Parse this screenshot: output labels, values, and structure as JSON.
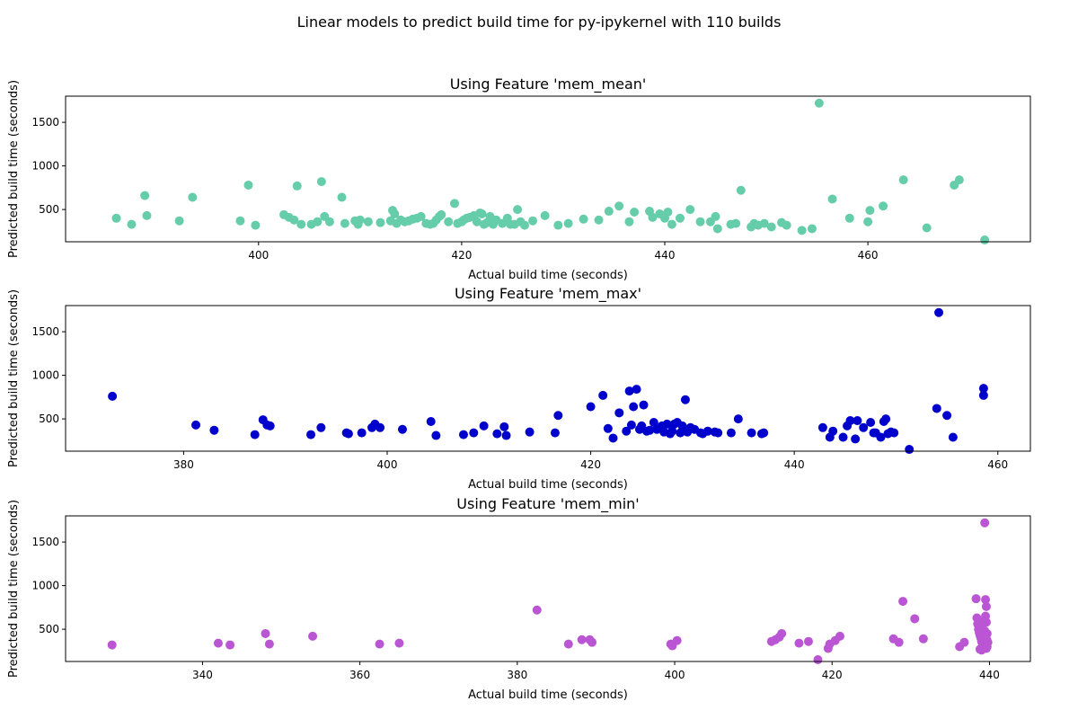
{
  "figure": {
    "suptitle": "Linear models to predict build time for py-ipykernel with 110 builds"
  },
  "chart_data": [
    {
      "type": "scatter",
      "title": "Using Feature 'mem_mean'",
      "xlabel": "Actual build time (seconds)",
      "ylabel": "Predicted build time (seconds)",
      "xlim": [
        381,
        476
      ],
      "ylim": [
        130,
        1800
      ],
      "xticks": [
        400,
        420,
        440,
        460
      ],
      "yticks": [
        500,
        1000,
        1500
      ],
      "color": "#66cdaa",
      "points": [
        [
          386,
          400
        ],
        [
          387.5,
          330
        ],
        [
          388.8,
          660
        ],
        [
          389,
          430
        ],
        [
          392.2,
          370
        ],
        [
          393.5,
          640
        ],
        [
          398.2,
          370
        ],
        [
          399,
          780
        ],
        [
          399.7,
          320
        ],
        [
          402.5,
          440
        ],
        [
          403,
          410
        ],
        [
          403.5,
          380
        ],
        [
          403.8,
          770
        ],
        [
          404.2,
          330
        ],
        [
          405.2,
          330
        ],
        [
          405.8,
          360
        ],
        [
          406.2,
          820
        ],
        [
          406.5,
          420
        ],
        [
          407,
          360
        ],
        [
          408.2,
          640
        ],
        [
          408.5,
          340
        ],
        [
          409.5,
          370
        ],
        [
          409.8,
          330
        ],
        [
          410,
          380
        ],
        [
          410.8,
          360
        ],
        [
          412,
          350
        ],
        [
          413,
          370
        ],
        [
          413.2,
          490
        ],
        [
          413.4,
          450
        ],
        [
          413.6,
          340
        ],
        [
          414,
          380
        ],
        [
          414.4,
          360
        ],
        [
          414.8,
          370
        ],
        [
          415.2,
          390
        ],
        [
          415.6,
          400
        ],
        [
          416,
          420
        ],
        [
          416.5,
          340
        ],
        [
          416.9,
          330
        ],
        [
          417.2,
          340
        ],
        [
          417.5,
          380
        ],
        [
          417.8,
          420
        ],
        [
          418,
          440
        ],
        [
          418.7,
          360
        ],
        [
          419.3,
          570
        ],
        [
          419.6,
          340
        ],
        [
          420,
          360
        ],
        [
          420.2,
          380
        ],
        [
          420.5,
          400
        ],
        [
          420.8,
          410
        ],
        [
          421.2,
          430
        ],
        [
          421.5,
          360
        ],
        [
          421.8,
          460
        ],
        [
          422,
          450
        ],
        [
          422.2,
          330
        ],
        [
          422.5,
          350
        ],
        [
          422.8,
          420
        ],
        [
          423.1,
          330
        ],
        [
          423.4,
          380
        ],
        [
          424,
          340
        ],
        [
          424.5,
          400
        ],
        [
          424.8,
          330
        ],
        [
          425.2,
          330
        ],
        [
          425.5,
          500
        ],
        [
          425.8,
          360
        ],
        [
          426.2,
          320
        ],
        [
          427,
          370
        ],
        [
          428.2,
          430
        ],
        [
          429.5,
          320
        ],
        [
          430.5,
          340
        ],
        [
          432,
          390
        ],
        [
          433.5,
          380
        ],
        [
          434.5,
          480
        ],
        [
          435.5,
          540
        ],
        [
          436.5,
          360
        ],
        [
          437,
          470
        ],
        [
          438.5,
          480
        ],
        [
          438.8,
          410
        ],
        [
          439.5,
          450
        ],
        [
          440,
          400
        ],
        [
          440.3,
          470
        ],
        [
          440.7,
          330
        ],
        [
          441.5,
          400
        ],
        [
          442.5,
          500
        ],
        [
          443.5,
          360
        ],
        [
          444.5,
          360
        ],
        [
          445,
          420
        ],
        [
          445.2,
          280
        ],
        [
          446.5,
          330
        ],
        [
          447,
          340
        ],
        [
          447.5,
          720
        ],
        [
          448.5,
          300
        ],
        [
          448.8,
          340
        ],
        [
          449.2,
          320
        ],
        [
          449.8,
          340
        ],
        [
          450.5,
          300
        ],
        [
          451.5,
          350
        ],
        [
          452,
          320
        ],
        [
          453.5,
          260
        ],
        [
          454.5,
          280
        ],
        [
          455.2,
          1720
        ],
        [
          456.5,
          620
        ],
        [
          458.2,
          400
        ],
        [
          460,
          360
        ],
        [
          460.2,
          490
        ],
        [
          461.5,
          540
        ],
        [
          463.5,
          840
        ],
        [
          465.8,
          290
        ],
        [
          468.5,
          780
        ],
        [
          469,
          840
        ],
        [
          471.5,
          150
        ]
      ]
    },
    {
      "type": "scatter",
      "title": "Using Feature 'mem_max'",
      "xlabel": "Actual build time (seconds)",
      "ylabel": "Predicted build time (seconds)",
      "xlim": [
        368.4,
        463.2
      ],
      "ylim": [
        130,
        1800
      ],
      "xticks": [
        380,
        400,
        420,
        440,
        460
      ],
      "yticks": [
        500,
        1000,
        1500
      ],
      "color": "#0000cd",
      "points": [
        [
          373,
          760
        ],
        [
          381.2,
          430
        ],
        [
          383,
          370
        ],
        [
          387,
          320
        ],
        [
          387.8,
          490
        ],
        [
          388.2,
          430
        ],
        [
          388.5,
          420
        ],
        [
          392.5,
          320
        ],
        [
          393.5,
          400
        ],
        [
          396,
          340
        ],
        [
          396.2,
          330
        ],
        [
          397.5,
          340
        ],
        [
          398.5,
          400
        ],
        [
          398.8,
          440
        ],
        [
          399.3,
          400
        ],
        [
          401.5,
          380
        ],
        [
          404.3,
          470
        ],
        [
          404.8,
          310
        ],
        [
          407.5,
          320
        ],
        [
          408.5,
          340
        ],
        [
          409.5,
          420
        ],
        [
          410.8,
          330
        ],
        [
          411.5,
          410
        ],
        [
          411.7,
          310
        ],
        [
          414,
          350
        ],
        [
          416.5,
          340
        ],
        [
          416.8,
          540
        ],
        [
          420,
          640
        ],
        [
          421.2,
          770
        ],
        [
          421.7,
          390
        ],
        [
          422.2,
          280
        ],
        [
          422.8,
          570
        ],
        [
          423.5,
          360
        ],
        [
          423.8,
          820
        ],
        [
          424,
          430
        ],
        [
          424.2,
          640
        ],
        [
          424.5,
          840
        ],
        [
          424.8,
          380
        ],
        [
          425,
          420
        ],
        [
          425.2,
          660
        ],
        [
          425.5,
          360
        ],
        [
          425.8,
          370
        ],
        [
          426.2,
          460
        ],
        [
          426.5,
          380
        ],
        [
          427,
          420
        ],
        [
          427.2,
          350
        ],
        [
          427.5,
          440
        ],
        [
          427.8,
          330
        ],
        [
          428,
          360
        ],
        [
          428.2,
          440
        ],
        [
          428.5,
          460
        ],
        [
          428.8,
          340
        ],
        [
          429,
          420
        ],
        [
          429.3,
          720
        ],
        [
          429.5,
          350
        ],
        [
          429.8,
          400
        ],
        [
          430.2,
          380
        ],
        [
          430.8,
          340
        ],
        [
          431,
          330
        ],
        [
          431.5,
          360
        ],
        [
          432.2,
          350
        ],
        [
          432.5,
          340
        ],
        [
          433.8,
          340
        ],
        [
          434.5,
          500
        ],
        [
          435.8,
          340
        ],
        [
          436.8,
          330
        ],
        [
          437,
          340
        ],
        [
          442.8,
          400
        ],
        [
          443.5,
          290
        ],
        [
          443.8,
          360
        ],
        [
          444.8,
          290
        ],
        [
          445.2,
          420
        ],
        [
          445.5,
          480
        ],
        [
          446,
          270
        ],
        [
          446.2,
          480
        ],
        [
          446.8,
          400
        ],
        [
          447.5,
          460
        ],
        [
          447.8,
          340
        ],
        [
          448,
          340
        ],
        [
          448.5,
          290
        ],
        [
          448.8,
          470
        ],
        [
          449,
          500
        ],
        [
          449.2,
          330
        ],
        [
          449.5,
          350
        ],
        [
          449.8,
          340
        ],
        [
          451.3,
          150
        ],
        [
          454,
          620
        ],
        [
          454.2,
          1720
        ],
        [
          455,
          540
        ],
        [
          455.6,
          290
        ],
        [
          458.6,
          850
        ],
        [
          458.6,
          770
        ]
      ]
    },
    {
      "type": "scatter",
      "title": "Using Feature 'mem_min'",
      "xlabel": "Actual build time (seconds)",
      "ylabel": "Predicted build time (seconds)",
      "xlim": [
        322.6,
        445.2
      ],
      "ylim": [
        130,
        1800
      ],
      "xticks": [
        340,
        360,
        380,
        400,
        420,
        440
      ],
      "yticks": [
        500,
        1000,
        1500
      ],
      "color": "#ba55d3",
      "points": [
        [
          328.5,
          320
        ],
        [
          342,
          340
        ],
        [
          343.5,
          320
        ],
        [
          348,
          450
        ],
        [
          348.5,
          330
        ],
        [
          354,
          420
        ],
        [
          362.5,
          330
        ],
        [
          365,
          340
        ],
        [
          382.5,
          720
        ],
        [
          386.5,
          330
        ],
        [
          388.2,
          380
        ],
        [
          389.2,
          380
        ],
        [
          389.5,
          350
        ],
        [
          399.5,
          330
        ],
        [
          399.7,
          310
        ],
        [
          400.3,
          370
        ],
        [
          412.3,
          360
        ],
        [
          412.8,
          380
        ],
        [
          413.3,
          410
        ],
        [
          413.6,
          450
        ],
        [
          415.8,
          340
        ],
        [
          417,
          360
        ],
        [
          418.2,
          150
        ],
        [
          419.5,
          280
        ],
        [
          419.7,
          330
        ],
        [
          420.4,
          370
        ],
        [
          421,
          420
        ],
        [
          427.8,
          390
        ],
        [
          428.5,
          350
        ],
        [
          429,
          820
        ],
        [
          430.5,
          620
        ],
        [
          431.6,
          390
        ],
        [
          436.2,
          300
        ],
        [
          436.8,
          350
        ],
        [
          438.3,
          850
        ],
        [
          438.4,
          630
        ],
        [
          438.5,
          560
        ],
        [
          438.6,
          500
        ],
        [
          438.7,
          460
        ],
        [
          438.8,
          430
        ],
        [
          438.9,
          400
        ],
        [
          439,
          380
        ],
        [
          439,
          360
        ],
        [
          439.1,
          340
        ],
        [
          439.2,
          330
        ],
        [
          439.3,
          320
        ],
        [
          439.1,
          300
        ],
        [
          439.2,
          290
        ],
        [
          438.8,
          270
        ],
        [
          439,
          260
        ],
        [
          439.4,
          1720
        ],
        [
          439.5,
          840
        ],
        [
          439.6,
          760
        ],
        [
          439.5,
          650
        ],
        [
          439.6,
          580
        ],
        [
          439.4,
          480
        ],
        [
          439.7,
          450
        ],
        [
          439.5,
          410
        ],
        [
          439.6,
          390
        ],
        [
          439.7,
          370
        ],
        [
          439.8,
          350
        ],
        [
          439.5,
          310
        ],
        [
          439.7,
          300
        ],
        [
          439.6,
          280
        ],
        [
          439.3,
          600
        ],
        [
          439.0,
          530
        ]
      ]
    }
  ]
}
